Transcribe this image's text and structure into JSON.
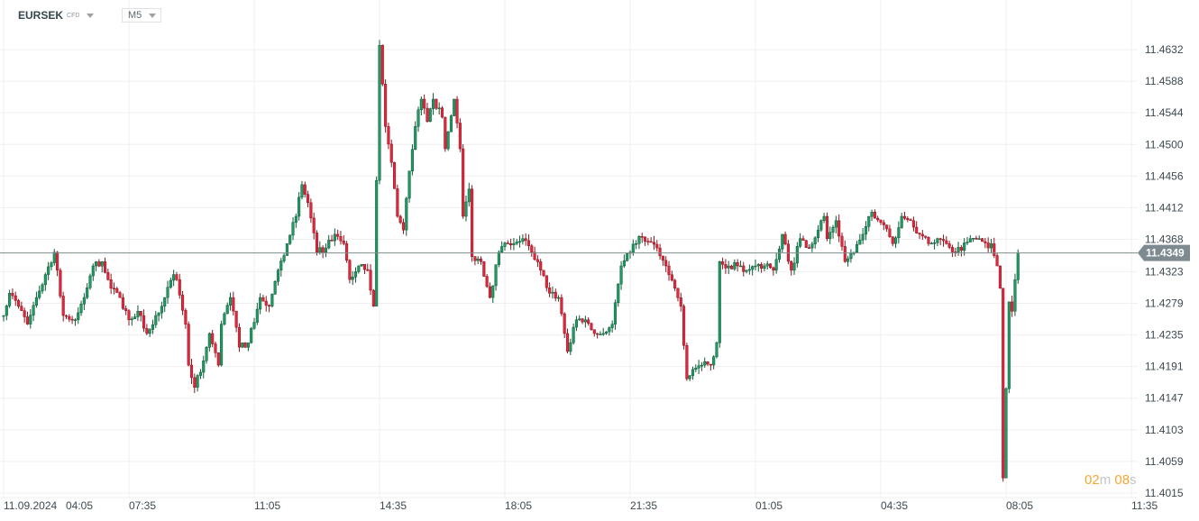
{
  "header": {
    "symbol": "EURSEK",
    "symbol_type": "CFD",
    "timeframe": "M5"
  },
  "countdown": {
    "minutes": "02",
    "minutes_unit": "m",
    "seconds": "08",
    "seconds_unit": "s"
  },
  "colors": {
    "up": "#1f9a62",
    "up_border": "#0f5a38",
    "down": "#e3263b",
    "down_border": "#8c1622",
    "grid": "#efefef",
    "price_line": "#7f8c8d",
    "price_tag": "#7d8a8f",
    "countdown": "#f7a531"
  },
  "chart_data": {
    "type": "candlestick",
    "instrument": "EURSEK",
    "timeframe": "M5",
    "ylim": [
      11.4015,
      11.4632
    ],
    "y_ticks": [
      "11.4632",
      "11.4588",
      "11.4544",
      "11.4500",
      "11.4456",
      "11.4412",
      "11.4368",
      "11.4323",
      "11.4279",
      "11.4235",
      "11.4191",
      "11.4147",
      "11.4103",
      "11.4059",
      "11.4015"
    ],
    "x_ticks": [
      {
        "date": "11.09.2024",
        "time": "04:05"
      },
      {
        "time": "07:35"
      },
      {
        "time": "11:05"
      },
      {
        "time": "14:35"
      },
      {
        "time": "18:05"
      },
      {
        "time": "21:35"
      },
      {
        "time": "01:05"
      },
      {
        "time": "04:35"
      },
      {
        "time": "08:05"
      },
      {
        "time": "11:35"
      }
    ],
    "current_price": "11.4349",
    "grid": true,
    "close_path": [
      [
        "04:05",
        11.4262
      ],
      [
        "04:15",
        11.4293
      ],
      [
        "04:30",
        11.4275
      ],
      [
        "04:45",
        11.425
      ],
      [
        "05:00",
        11.4287
      ],
      [
        "05:15",
        11.4319
      ],
      [
        "05:30",
        11.435
      ],
      [
        "05:35",
        11.4325
      ],
      [
        "05:45",
        11.4262
      ],
      [
        "06:05",
        11.4256
      ],
      [
        "06:20",
        11.4287
      ],
      [
        "06:35",
        11.4331
      ],
      [
        "06:50",
        11.4337
      ],
      [
        "07:05",
        11.43
      ],
      [
        "07:20",
        11.4287
      ],
      [
        "07:35",
        11.4256
      ],
      [
        "07:50",
        11.4268
      ],
      [
        "08:05",
        11.4237
      ],
      [
        "08:20",
        11.4262
      ],
      [
        "08:35",
        11.4287
      ],
      [
        "08:50",
        11.4319
      ],
      [
        "08:55",
        11.4312
      ],
      [
        "09:10",
        11.425
      ],
      [
        "09:15",
        11.4193
      ],
      [
        "09:25",
        11.4162
      ],
      [
        "09:40",
        11.4199
      ],
      [
        "09:50",
        11.4237
      ],
      [
        "10:05",
        11.4193
      ],
      [
        "10:10",
        11.425
      ],
      [
        "10:25",
        11.4287
      ],
      [
        "10:40",
        11.4218
      ],
      [
        "10:55",
        11.4224
      ],
      [
        "11:15",
        11.4287
      ],
      [
        "11:30",
        11.4275
      ],
      [
        "11:45",
        11.4325
      ],
      [
        "12:00",
        11.4362
      ],
      [
        "12:15",
        11.44
      ],
      [
        "12:25",
        11.4444
      ],
      [
        "12:35",
        11.4419
      ],
      [
        "12:50",
        11.435
      ],
      [
        "13:05",
        11.4356
      ],
      [
        "13:20",
        11.4375
      ],
      [
        "13:35",
        11.4362
      ],
      [
        "13:45",
        11.4312
      ],
      [
        "14:00",
        11.4331
      ],
      [
        "14:15",
        11.4325
      ],
      [
        "14:25",
        11.4275
      ],
      [
        "14:30",
        11.445
      ],
      [
        "14:35",
        11.4638
      ],
      [
        "14:45",
        11.4525
      ],
      [
        "14:55",
        11.4475
      ],
      [
        "15:05",
        11.44
      ],
      [
        "15:15",
        11.4381
      ],
      [
        "15:25",
        11.4463
      ],
      [
        "15:35",
        11.4525
      ],
      [
        "15:45",
        11.4563
      ],
      [
        "15:55",
        11.4532
      ],
      [
        "16:05",
        11.4563
      ],
      [
        "16:20",
        11.4538
      ],
      [
        "16:25",
        11.4494
      ],
      [
        "16:40",
        11.4563
      ],
      [
        "16:50",
        11.4494
      ],
      [
        "16:55",
        11.44
      ],
      [
        "17:05",
        11.4438
      ],
      [
        "17:10",
        11.4344
      ],
      [
        "17:25",
        11.4337
      ],
      [
        "17:40",
        11.4287
      ],
      [
        "17:55",
        11.435
      ],
      [
        "18:10",
        11.4362
      ],
      [
        "18:35",
        11.4369
      ],
      [
        "18:50",
        11.435
      ],
      [
        "19:05",
        11.4325
      ],
      [
        "19:20",
        11.4293
      ],
      [
        "19:35",
        11.4287
      ],
      [
        "19:50",
        11.4212
      ],
      [
        "20:05",
        11.4256
      ],
      [
        "20:20",
        11.4256
      ],
      [
        "20:35",
        11.4237
      ],
      [
        "20:50",
        11.4237
      ],
      [
        "21:05",
        11.425
      ],
      [
        "21:20",
        11.4331
      ],
      [
        "21:35",
        11.435
      ],
      [
        "21:50",
        11.4372
      ],
      [
        "22:05",
        11.4365
      ],
      [
        "22:20",
        11.4356
      ],
      [
        "22:35",
        11.4331
      ],
      [
        "22:50",
        11.43
      ],
      [
        "23:00",
        11.4275
      ],
      [
        "23:10",
        11.4174
      ],
      [
        "23:20",
        11.4187
      ],
      [
        "23:35",
        11.4193
      ],
      [
        "23:50",
        11.4193
      ],
      [
        "00:00",
        11.4224
      ],
      [
        "00:05",
        11.4337
      ],
      [
        "00:20",
        11.4331
      ],
      [
        "00:35",
        11.4331
      ],
      [
        "00:50",
        11.4325
      ],
      [
        "01:05",
        11.4331
      ],
      [
        "01:20",
        11.4331
      ],
      [
        "01:35",
        11.4325
      ],
      [
        "01:50",
        11.4375
      ],
      [
        "02:05",
        11.4325
      ],
      [
        "02:20",
        11.4369
      ],
      [
        "02:35",
        11.4356
      ],
      [
        "02:50",
        11.4381
      ],
      [
        "03:00",
        11.44
      ],
      [
        "03:05",
        11.4369
      ],
      [
        "03:20",
        11.4394
      ],
      [
        "03:35",
        11.4337
      ],
      [
        "03:50",
        11.435
      ],
      [
        "04:05",
        11.4375
      ],
      [
        "04:20",
        11.4406
      ],
      [
        "04:40",
        11.4388
      ],
      [
        "04:55",
        11.4362
      ],
      [
        "05:10",
        11.44
      ],
      [
        "05:25",
        11.4394
      ],
      [
        "05:40",
        11.4375
      ],
      [
        "05:55",
        11.4362
      ],
      [
        "06:10",
        11.4369
      ],
      [
        "06:25",
        11.4362
      ],
      [
        "06:40",
        11.435
      ],
      [
        "07:05",
        11.4369
      ],
      [
        "07:20",
        11.4369
      ],
      [
        "07:35",
        11.4356
      ],
      [
        "07:40",
        11.4362
      ],
      [
        "07:50",
        11.4331
      ],
      [
        "07:55",
        11.43
      ],
      [
        "08:00",
        11.4036
      ],
      [
        "08:10",
        11.4281
      ],
      [
        "08:15",
        11.4268
      ],
      [
        "08:25",
        11.4349
      ]
    ]
  }
}
